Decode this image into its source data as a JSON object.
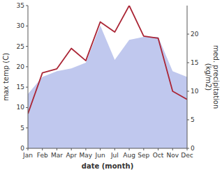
{
  "chart_data": {
    "type": "line",
    "categories": [
      "Jan",
      "Feb",
      "Mar",
      "Apr",
      "May",
      "Jun",
      "Jul",
      "Aug",
      "Sep",
      "Oct",
      "Nov",
      "Dec"
    ],
    "xlabel": "date (month)",
    "ylabel": "max temp (C)",
    "y2label": "med. precipitation\n(kg/m2)",
    "series": [
      {
        "type": "area",
        "axis": "y2",
        "color": "#c0c8ee",
        "values": [
          9.5,
          12.5,
          13.5,
          14.0,
          15.0,
          21.5,
          15.5,
          19.0,
          19.5,
          19.5,
          13.5,
          12.5
        ]
      },
      {
        "type": "line",
        "color": "#aa2535",
        "values": [
          8.5,
          18.5,
          19.5,
          24.5,
          21.5,
          31.0,
          28.5,
          35.0,
          27.5,
          27.0,
          14.0,
          12.0
        ]
      }
    ],
    "ylim": [
      0,
      35
    ],
    "yticks": [
      0,
      5,
      10,
      15,
      20,
      25,
      30,
      35
    ],
    "y2lim": [
      0,
      25
    ],
    "y2ticks": [
      0,
      5,
      10,
      15,
      20
    ],
    "grid": false
  }
}
